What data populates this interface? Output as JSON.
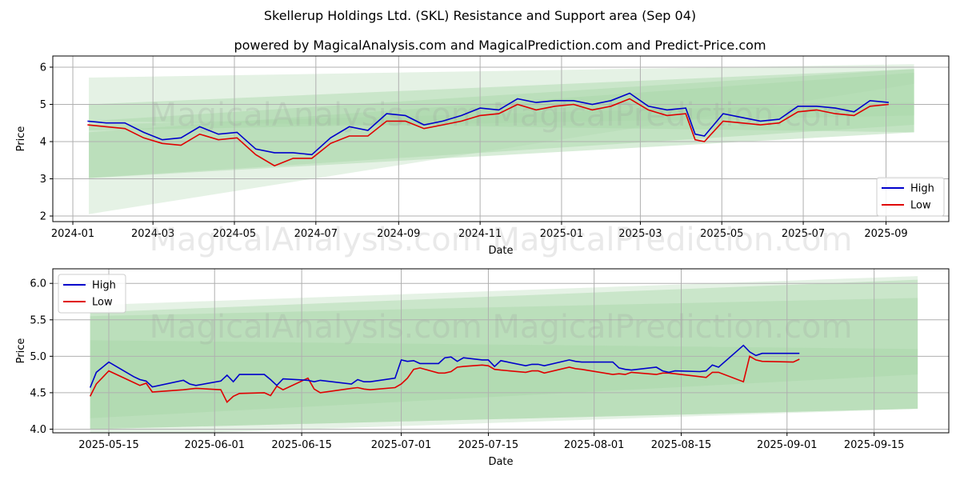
{
  "header": {
    "title": "Skellerup Holdings Ltd. (SKL) Resistance and Support area (Sep 04)",
    "subtitle": "powered by MagicalAnalysis.com and MagicalPrediction.com and Predict-Price.com"
  },
  "watermarks": [
    "MagicalAnalysis.com",
    "MagicalPrediction.com"
  ],
  "colors": {
    "high": "#0000cc",
    "low": "#e00000",
    "band_light": "#cfe8cf",
    "band": "#a8d8a8",
    "grid": "#b0b0b0"
  },
  "chart_data": [
    {
      "type": "line",
      "name": "full-history",
      "xlabel": "Date",
      "ylabel": "Price",
      "x_ticks": [
        "2024-01",
        "2024-03",
        "2024-05",
        "2024-07",
        "2024-09",
        "2024-11",
        "2025-01",
        "2025-03",
        "2025-05",
        "2025-07",
        "2025-09"
      ],
      "y_ticks": [
        "2",
        "3",
        "4",
        "5",
        "6"
      ],
      "xlim": [
        "2023-12-17",
        "2025-10-18"
      ],
      "ylim": [
        1.85,
        6.3
      ],
      "grid": true,
      "legend": {
        "position": "lower right",
        "entries": [
          "High",
          "Low"
        ]
      },
      "bands": [
        {
          "start": "2024-01-13",
          "end": "2025-09-22",
          "upper": [
            5.72,
            6.08
          ],
          "lower": [
            2.05,
            5.55
          ]
        },
        {
          "start": "2024-01-13",
          "end": "2025-09-22",
          "upper": [
            4.55,
            5.95
          ],
          "lower": [
            3.02,
            4.45
          ]
        },
        {
          "start": "2024-01-13",
          "end": "2025-09-22",
          "upper": [
            4.25,
            5.85
          ],
          "lower": [
            3.02,
            4.25
          ]
        },
        {
          "start": "2024-01-13",
          "end": "2025-09-22",
          "upper": [
            5.0,
            5.95
          ],
          "lower": [
            4.55,
            4.25
          ]
        },
        {
          "start": "2024-01-13",
          "end": "2025-09-22",
          "upper": [
            4.45,
            5.05
          ],
          "lower": [
            4.3,
            4.7
          ]
        }
      ],
      "x": [
        "2024-01-12",
        "2024-01-26",
        "2024-02-09",
        "2024-02-23",
        "2024-03-08",
        "2024-03-22",
        "2024-04-05",
        "2024-04-19",
        "2024-05-03",
        "2024-05-17",
        "2024-05-31",
        "2024-06-14",
        "2024-06-28",
        "2024-07-12",
        "2024-07-26",
        "2024-08-09",
        "2024-08-23",
        "2024-09-06",
        "2024-09-20",
        "2024-10-04",
        "2024-10-18",
        "2024-11-01",
        "2024-11-15",
        "2024-11-29",
        "2024-12-13",
        "2024-12-27",
        "2025-01-10",
        "2025-01-24",
        "2025-02-07",
        "2025-02-21",
        "2025-03-07",
        "2025-03-21",
        "2025-04-04",
        "2025-04-11",
        "2025-04-18",
        "2025-05-02",
        "2025-05-16",
        "2025-05-30",
        "2025-06-13",
        "2025-06-27",
        "2025-07-11",
        "2025-07-25",
        "2025-08-08",
        "2025-08-20",
        "2025-09-03"
      ],
      "series": [
        {
          "name": "High",
          "values": [
            4.55,
            4.5,
            4.5,
            4.25,
            4.05,
            4.1,
            4.4,
            4.2,
            4.25,
            3.8,
            3.7,
            3.7,
            3.65,
            4.1,
            4.4,
            4.3,
            4.75,
            4.7,
            4.45,
            4.55,
            4.7,
            4.9,
            4.85,
            5.15,
            5.05,
            5.1,
            5.1,
            5.0,
            5.1,
            5.3,
            4.95,
            4.85,
            4.9,
            4.2,
            4.15,
            4.75,
            4.65,
            4.55,
            4.6,
            4.95,
            4.95,
            4.9,
            4.8,
            5.1,
            5.05
          ]
        },
        {
          "name": "Low",
          "values": [
            4.45,
            4.4,
            4.35,
            4.1,
            3.95,
            3.9,
            4.2,
            4.05,
            4.1,
            3.65,
            3.35,
            3.55,
            3.55,
            3.95,
            4.15,
            4.15,
            4.55,
            4.55,
            4.35,
            4.45,
            4.55,
            4.7,
            4.75,
            5.0,
            4.85,
            4.95,
            5.0,
            4.85,
            4.95,
            5.15,
            4.85,
            4.7,
            4.75,
            4.05,
            4.0,
            4.55,
            4.5,
            4.45,
            4.5,
            4.8,
            4.85,
            4.75,
            4.7,
            4.95,
            5.0
          ]
        }
      ]
    },
    {
      "type": "line",
      "name": "recent",
      "xlabel": "Date",
      "ylabel": "Price",
      "x_ticks": [
        "2025-05-15",
        "2025-06-01",
        "2025-06-15",
        "2025-07-01",
        "2025-07-15",
        "2025-08-01",
        "2025-08-15",
        "2025-09-01",
        "2025-09-15"
      ],
      "y_ticks": [
        "4.0",
        "4.5",
        "5.0",
        "5.5",
        "6.0"
      ],
      "xlim": [
        "2025-05-06",
        "2025-09-27"
      ],
      "ylim": [
        3.95,
        6.2
      ],
      "grid": true,
      "legend": {
        "position": "upper left",
        "entries": [
          "High",
          "Low"
        ]
      },
      "bands": [
        {
          "start": "2025-05-12",
          "end": "2025-09-22",
          "upper": [
            5.7,
            6.1
          ],
          "lower": [
            3.9,
            4.28
          ]
        },
        {
          "start": "2025-05-12",
          "end": "2025-09-22",
          "upper": [
            5.6,
            6.05
          ],
          "lower": [
            4.0,
            4.28
          ]
        },
        {
          "start": "2025-05-12",
          "end": "2025-09-22",
          "upper": [
            5.55,
            5.8
          ],
          "lower": [
            4.0,
            4.28
          ]
        },
        {
          "start": "2025-05-12",
          "end": "2025-09-22",
          "upper": [
            5.22,
            5.1
          ],
          "lower": [
            4.15,
            4.75
          ]
        }
      ],
      "x": [
        "2025-05-12",
        "2025-05-13",
        "2025-05-15",
        "2025-05-19",
        "2025-05-20",
        "2025-05-21",
        "2025-05-22",
        "2025-05-27",
        "2025-05-28",
        "2025-05-29",
        "2025-06-02",
        "2025-06-03",
        "2025-06-04",
        "2025-06-05",
        "2025-06-09",
        "2025-06-10",
        "2025-06-11",
        "2025-06-12",
        "2025-06-16",
        "2025-06-17",
        "2025-06-18",
        "2025-06-23",
        "2025-06-24",
        "2025-06-25",
        "2025-06-26",
        "2025-06-30",
        "2025-07-01",
        "2025-07-02",
        "2025-07-03",
        "2025-07-04",
        "2025-07-07",
        "2025-07-08",
        "2025-07-09",
        "2025-07-10",
        "2025-07-11",
        "2025-07-14",
        "2025-07-15",
        "2025-07-16",
        "2025-07-17",
        "2025-07-21",
        "2025-07-22",
        "2025-07-23",
        "2025-07-24",
        "2025-07-28",
        "2025-07-29",
        "2025-07-30",
        "2025-08-04",
        "2025-08-05",
        "2025-08-06",
        "2025-08-07",
        "2025-08-11",
        "2025-08-12",
        "2025-08-13",
        "2025-08-14",
        "2025-08-18",
        "2025-08-19",
        "2025-08-20",
        "2025-08-21",
        "2025-08-25",
        "2025-08-26",
        "2025-08-27",
        "2025-08-28",
        "2025-09-02",
        "2025-09-03"
      ],
      "series": [
        {
          "name": "High",
          "values": [
            4.57,
            4.78,
            4.92,
            4.72,
            4.68,
            4.66,
            4.58,
            4.67,
            4.62,
            4.6,
            4.66,
            4.74,
            4.65,
            4.75,
            4.75,
            4.68,
            4.6,
            4.69,
            4.67,
            4.65,
            4.67,
            4.62,
            4.68,
            4.65,
            4.65,
            4.7,
            4.95,
            4.93,
            4.94,
            4.9,
            4.9,
            4.98,
            4.99,
            4.93,
            4.98,
            4.95,
            4.95,
            4.86,
            4.94,
            4.87,
            4.89,
            4.89,
            4.87,
            4.95,
            4.93,
            4.92,
            4.92,
            4.84,
            4.82,
            4.81,
            4.85,
            4.8,
            4.78,
            4.8,
            4.79,
            4.8,
            4.88,
            4.85,
            5.15,
            5.06,
            5.01,
            5.04,
            5.04,
            5.04
          ]
        },
        {
          "name": "Low",
          "values": [
            4.45,
            4.62,
            4.8,
            4.64,
            4.6,
            4.63,
            4.51,
            4.54,
            4.55,
            4.56,
            4.54,
            4.37,
            4.45,
            4.49,
            4.5,
            4.46,
            4.59,
            4.54,
            4.7,
            4.55,
            4.5,
            4.56,
            4.57,
            4.55,
            4.54,
            4.57,
            4.62,
            4.7,
            4.82,
            4.84,
            4.77,
            4.77,
            4.79,
            4.85,
            4.86,
            4.88,
            4.87,
            4.82,
            4.81,
            4.78,
            4.8,
            4.8,
            4.77,
            4.85,
            4.83,
            4.82,
            4.75,
            4.76,
            4.75,
            4.78,
            4.75,
            4.77,
            4.77,
            4.76,
            4.72,
            4.71,
            4.78,
            4.78,
            4.65,
            5.0,
            4.95,
            4.93,
            4.92,
            4.96
          ]
        }
      ]
    }
  ]
}
